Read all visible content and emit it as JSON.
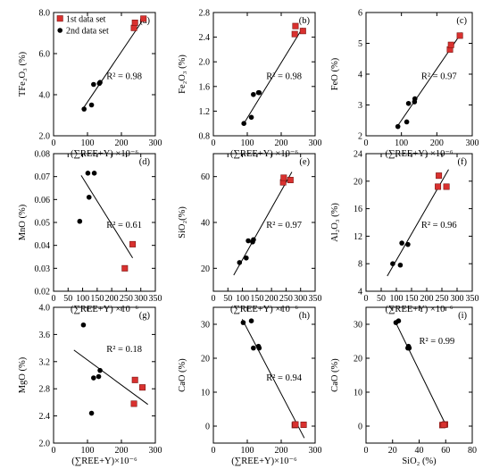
{
  "figure": {
    "legend": [
      {
        "label": "1st data set",
        "marker": "square",
        "color": "#d9312f"
      },
      {
        "label": "2nd data set",
        "marker": "circle",
        "color": "#000000"
      }
    ]
  },
  "chart_data": [
    {
      "id": "a",
      "type": "scatter",
      "panel_label": "(a)",
      "ylabel": "TFe₂O₃ (%)",
      "xlabel": "(∑REE+Y) ×10⁻⁶",
      "xlim": [
        0,
        300
      ],
      "ylim": [
        2.0,
        8.0
      ],
      "xticks": [
        0,
        100,
        200,
        300
      ],
      "yticks": [
        2.0,
        4.0,
        6.0,
        8.0
      ],
      "ytick_labels": [
        "2.0",
        "4.0",
        "6.0",
        "8.0"
      ],
      "annotation": "R² = 0.98",
      "series": [
        {
          "name": "1st data set",
          "points": [
            [
              237,
              7.25
            ],
            [
              240,
              7.5
            ],
            [
              265,
              7.7
            ]
          ]
        },
        {
          "name": "2nd data set",
          "points": [
            [
              90,
              3.3
            ],
            [
              112,
              3.5
            ],
            [
              118,
              4.5
            ],
            [
              135,
              4.55
            ],
            [
              137,
              4.6
            ]
          ]
        }
      ],
      "fit": [
        [
          90,
          3.4
        ],
        [
          268,
          7.75
        ]
      ]
    },
    {
      "id": "b",
      "type": "scatter",
      "panel_label": "(b)",
      "ylabel": "Fe₂O₃ (%)",
      "xlabel": "(∑REE+Y) ×10⁻⁶",
      "xlim": [
        0,
        300
      ],
      "ylim": [
        0.8,
        2.8
      ],
      "xticks": [
        0,
        100,
        200,
        300
      ],
      "yticks": [
        0.8,
        1.2,
        1.6,
        2.0,
        2.4,
        2.8
      ],
      "ytick_labels": [
        "0.8",
        "1.2",
        "1.6",
        "2.0",
        "2.4",
        "2.8"
      ],
      "annotation": "R² = 0.98",
      "series": [
        {
          "name": "1st data set",
          "points": [
            [
              240,
              2.45
            ],
            [
              242,
              2.58
            ],
            [
              264,
              2.5
            ]
          ]
        },
        {
          "name": "2nd data set",
          "points": [
            [
              90,
              1.0
            ],
            [
              112,
              1.1
            ],
            [
              118,
              1.47
            ],
            [
              133,
              1.5
            ],
            [
              135,
              1.5
            ]
          ]
        }
      ],
      "fit": [
        [
          90,
          1.0
        ],
        [
          263,
          2.55
        ]
      ]
    },
    {
      "id": "c",
      "type": "scatter",
      "panel_label": "(c)",
      "ylabel": "FeO (%)",
      "xlabel": "(∑REE+Y) ×10⁻⁶",
      "xlim": [
        0,
        300
      ],
      "ylim": [
        2,
        6
      ],
      "xticks": [
        0,
        100,
        200,
        300
      ],
      "yticks": [
        2,
        3,
        4,
        5,
        6
      ],
      "ytick_labels": [
        "2",
        "3",
        "4",
        "5",
        "6"
      ],
      "annotation": "R² = 0.97",
      "series": [
        {
          "name": "1st data set",
          "points": [
            [
              237,
              4.8
            ],
            [
              240,
              4.95
            ],
            [
              265,
              5.25
            ]
          ]
        },
        {
          "name": "2nd data set",
          "points": [
            [
              90,
              2.3
            ],
            [
              115,
              2.45
            ],
            [
              120,
              3.05
            ],
            [
              137,
              3.1
            ],
            [
              138,
              3.2
            ]
          ]
        }
      ],
      "fit": [
        [
          85,
          2.25
        ],
        [
          270,
          5.35
        ]
      ]
    },
    {
      "id": "d",
      "type": "scatter",
      "panel_label": "(d)",
      "ylabel": "MnO (%)",
      "xlabel": "(∑REE+Y) ×10⁻⁶",
      "xlim": [
        0,
        350
      ],
      "ylim": [
        0.02,
        0.08
      ],
      "xticks": [
        0,
        50,
        100,
        150,
        200,
        250,
        300,
        350
      ],
      "yticks": [
        0.02,
        0.03,
        0.04,
        0.05,
        0.06,
        0.07,
        0.08
      ],
      "ytick_labels": [
        "0.02",
        "0.03",
        "0.04",
        "0.05",
        "0.06",
        "0.07",
        "0.08"
      ],
      "annotation": "R² = 0.61",
      "series": [
        {
          "name": "1st data set",
          "points": [
            [
              245,
              0.03
            ],
            [
              272,
              0.0405
            ]
          ]
        },
        {
          "name": "2nd data set",
          "points": [
            [
              90,
              0.0505
            ],
            [
              118,
              0.0715
            ],
            [
              122,
              0.061
            ],
            [
              140,
              0.0715
            ]
          ]
        }
      ],
      "fit": [
        [
          95,
          0.0705
        ],
        [
          272,
          0.0345
        ]
      ]
    },
    {
      "id": "e",
      "type": "scatter",
      "panel_label": "(e)",
      "ylabel": "SiO₂(%)",
      "xlabel": "(∑REE+Y) ×10⁻⁶",
      "xlim": [
        0,
        350
      ],
      "ylim": [
        10,
        70
      ],
      "xticks": [
        0,
        50,
        100,
        150,
        200,
        250,
        300,
        350
      ],
      "yticks": [
        20,
        40,
        60
      ],
      "ytick_labels": [
        "20",
        "40",
        "60"
      ],
      "annotation": "R² = 0.97",
      "series": [
        {
          "name": "1st data set",
          "points": [
            [
              240,
              57.5
            ],
            [
              242,
              59.5
            ],
            [
              265,
              58.5
            ]
          ]
        },
        {
          "name": "2nd data set",
          "points": [
            [
              90,
              22.5
            ],
            [
              113,
              24.5
            ],
            [
              120,
              32
            ],
            [
              135,
              31.5
            ],
            [
              138,
              32.5
            ]
          ]
        }
      ],
      "fit": [
        [
          70,
          17
        ],
        [
          270,
          62
        ]
      ]
    },
    {
      "id": "f",
      "type": "scatter",
      "panel_label": "(f)",
      "ylabel": "Al₂O₃ (%)",
      "xlabel": "(∑REE+Y) ×10⁻⁶",
      "xlim": [
        0,
        350
      ],
      "ylim": [
        4,
        24
      ],
      "xticks": [
        0,
        50,
        100,
        150,
        200,
        250,
        300,
        350
      ],
      "yticks": [
        4,
        8,
        12,
        16,
        20,
        24
      ],
      "ytick_labels": [
        "4",
        "8",
        "12",
        "16",
        "20",
        "24"
      ],
      "annotation": "R² = 0.96",
      "series": [
        {
          "name": "1st data set",
          "points": [
            [
              237,
              19.2
            ],
            [
              240,
              20.8
            ],
            [
              265,
              19.2
            ]
          ]
        },
        {
          "name": "2nd data set",
          "points": [
            [
              88,
              8.0
            ],
            [
              113,
              7.8
            ],
            [
              118,
              11.0
            ],
            [
              138,
              10.8
            ]
          ]
        }
      ],
      "fit": [
        [
          70,
          6.2
        ],
        [
          272,
          21.7
        ]
      ]
    },
    {
      "id": "g",
      "type": "scatter",
      "panel_label": "(g)",
      "ylabel": "MgO (%)",
      "xlabel": "(∑REE+Y)×10⁻⁶",
      "xlim": [
        0,
        300
      ],
      "ylim": [
        2.0,
        4.0
      ],
      "xticks": [
        0,
        100,
        200,
        300
      ],
      "yticks": [
        2.0,
        2.4,
        2.8,
        3.2,
        3.6,
        4.0
      ],
      "ytick_labels": [
        "2.0",
        "2.4",
        "2.8",
        "3.2",
        "3.6",
        "4.0"
      ],
      "annotation": "R² = 0.18",
      "series": [
        {
          "name": "1st data set",
          "points": [
            [
              237,
              2.58
            ],
            [
              240,
              2.93
            ],
            [
              262,
              2.82
            ]
          ]
        },
        {
          "name": "2nd data set",
          "points": [
            [
              88,
              3.74
            ],
            [
              112,
              2.44
            ],
            [
              118,
              2.96
            ],
            [
              133,
              2.98
            ],
            [
              137,
              3.07
            ]
          ]
        }
      ],
      "fit": [
        [
          60,
          3.37
        ],
        [
          278,
          2.57
        ]
      ]
    },
    {
      "id": "h",
      "type": "scatter",
      "panel_label": "(h)",
      "ylabel": "CaO (%)",
      "xlabel": "(∑REE+Y)×10⁻⁶",
      "xlim": [
        0,
        300
      ],
      "ylim": [
        -5,
        35
      ],
      "xticks": [
        0,
        100,
        200,
        300
      ],
      "yticks": [
        0,
        10,
        20,
        30
      ],
      "ytick_labels": [
        "0",
        "10",
        "20",
        "30"
      ],
      "annotation": "R² = 0.94",
      "series": [
        {
          "name": "1st data set",
          "points": [
            [
              240,
              0.3
            ],
            [
              242,
              0.5
            ],
            [
              266,
              0.4
            ]
          ]
        },
        {
          "name": "2nd data set",
          "points": [
            [
              88,
              30.5
            ],
            [
              112,
              31
            ],
            [
              118,
              23
            ],
            [
              133,
              23.5
            ],
            [
              135,
              23
            ]
          ]
        }
      ],
      "fit": [
        [
          85,
          31.5
        ],
        [
          268,
          -3.5
        ]
      ]
    },
    {
      "id": "i",
      "type": "scatter",
      "panel_label": "(i)",
      "ylabel": "CaO (%)",
      "xlabel": "SiO₂ (%)",
      "xlim": [
        0,
        80
      ],
      "ylim": [
        -5,
        35
      ],
      "xticks": [
        0,
        20,
        40,
        60,
        80
      ],
      "yticks": [
        0,
        10,
        20,
        30
      ],
      "ytick_labels": [
        "0",
        "10",
        "20",
        "30"
      ],
      "annotation": "R² = 0.99",
      "series": [
        {
          "name": "1st data set",
          "points": [
            [
              57.5,
              0.3
            ],
            [
              59.5,
              0.5
            ],
            [
              58.5,
              0.4
            ]
          ]
        },
        {
          "name": "2nd data set",
          "points": [
            [
              22.5,
              30.5
            ],
            [
              24.5,
              31
            ],
            [
              32,
              23.5
            ],
            [
              31.5,
              23
            ],
            [
              32.5,
              23
            ]
          ]
        }
      ],
      "fit": [
        [
          22,
          30.8
        ],
        [
          61,
          -0.4
        ]
      ]
    }
  ]
}
